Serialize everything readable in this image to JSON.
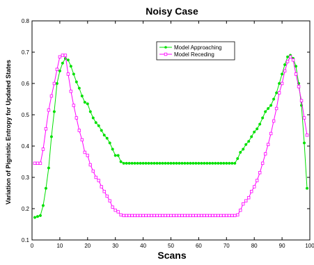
{
  "chart_data": {
    "type": "line",
    "title": "Noisy Case",
    "xlabel": "Scans",
    "ylabel": "Variation of Pignistic Entropy for Updated States",
    "xlim": [
      0,
      100
    ],
    "ylim": [
      0.1,
      0.8
    ],
    "xticks": [
      "0",
      "10",
      "20",
      "30",
      "40",
      "50",
      "60",
      "70",
      "80",
      "90",
      "100"
    ],
    "yticks": [
      "0.1",
      "0.2",
      "0.3",
      "0.4",
      "0.5",
      "0.6",
      "0.7",
      "0.8"
    ],
    "xtick_values": [
      0,
      10,
      20,
      30,
      40,
      50,
      60,
      70,
      80,
      90,
      100
    ],
    "ytick_values": [
      0.1,
      0.2,
      0.3,
      0.4,
      0.5,
      0.6,
      0.7,
      0.8
    ],
    "grid": false,
    "legend_position": "top-right",
    "series": [
      {
        "name": "Model Approaching",
        "color": "#00e000",
        "marker": "filled-dot",
        "x": [
          1,
          2,
          3,
          4,
          5,
          6,
          7,
          8,
          9,
          10,
          11,
          12,
          13,
          14,
          15,
          16,
          17,
          18,
          19,
          20,
          21,
          22,
          23,
          24,
          25,
          26,
          27,
          28,
          29,
          30,
          31,
          32,
          33,
          34,
          35,
          36,
          37,
          38,
          39,
          40,
          41,
          42,
          43,
          44,
          45,
          46,
          47,
          48,
          49,
          50,
          51,
          52,
          53,
          54,
          55,
          56,
          57,
          58,
          59,
          60,
          61,
          62,
          63,
          64,
          65,
          66,
          67,
          68,
          69,
          70,
          71,
          72,
          73,
          74,
          75,
          76,
          77,
          78,
          79,
          80,
          81,
          82,
          83,
          84,
          85,
          86,
          87,
          88,
          89,
          90,
          91,
          92,
          93,
          94,
          95,
          96,
          97,
          98,
          99
        ],
        "y": [
          0.172,
          0.175,
          0.178,
          0.21,
          0.265,
          0.33,
          0.43,
          0.51,
          0.6,
          0.64,
          0.665,
          0.68,
          0.675,
          0.655,
          0.63,
          0.605,
          0.585,
          0.56,
          0.54,
          0.535,
          0.51,
          0.49,
          0.475,
          0.465,
          0.45,
          0.435,
          0.425,
          0.41,
          0.39,
          0.37,
          0.37,
          0.35,
          0.345,
          0.345,
          0.345,
          0.345,
          0.345,
          0.345,
          0.345,
          0.345,
          0.345,
          0.345,
          0.345,
          0.345,
          0.345,
          0.345,
          0.345,
          0.345,
          0.345,
          0.345,
          0.345,
          0.345,
          0.345,
          0.345,
          0.345,
          0.345,
          0.345,
          0.345,
          0.345,
          0.345,
          0.345,
          0.345,
          0.345,
          0.345,
          0.345,
          0.345,
          0.345,
          0.345,
          0.345,
          0.345,
          0.345,
          0.345,
          0.345,
          0.36,
          0.38,
          0.39,
          0.405,
          0.415,
          0.43,
          0.445,
          0.455,
          0.47,
          0.49,
          0.51,
          0.52,
          0.53,
          0.55,
          0.57,
          0.6,
          0.63,
          0.66,
          0.685,
          0.69,
          0.68,
          0.655,
          0.6,
          0.53,
          0.41,
          0.265
        ]
      },
      {
        "name": "Model Receding",
        "color": "#ff00ff",
        "marker": "open-square",
        "x": [
          1,
          2,
          3,
          4,
          5,
          6,
          7,
          8,
          9,
          10,
          11,
          12,
          13,
          14,
          15,
          16,
          17,
          18,
          19,
          20,
          21,
          22,
          23,
          24,
          25,
          26,
          27,
          28,
          29,
          30,
          31,
          32,
          33,
          34,
          35,
          36,
          37,
          38,
          39,
          40,
          41,
          42,
          43,
          44,
          45,
          46,
          47,
          48,
          49,
          50,
          51,
          52,
          53,
          54,
          55,
          56,
          57,
          58,
          59,
          60,
          61,
          62,
          63,
          64,
          65,
          66,
          67,
          68,
          69,
          70,
          71,
          72,
          73,
          74,
          75,
          76,
          77,
          78,
          79,
          80,
          81,
          82,
          83,
          84,
          85,
          86,
          87,
          88,
          89,
          90,
          91,
          92,
          93,
          94,
          95,
          96,
          97,
          98,
          99
        ],
        "y": [
          0.345,
          0.345,
          0.345,
          0.39,
          0.455,
          0.515,
          0.56,
          0.6,
          0.645,
          0.685,
          0.69,
          0.69,
          0.63,
          0.575,
          0.53,
          0.49,
          0.45,
          0.42,
          0.38,
          0.37,
          0.34,
          0.32,
          0.3,
          0.29,
          0.27,
          0.255,
          0.24,
          0.225,
          0.205,
          0.195,
          0.19,
          0.18,
          0.178,
          0.178,
          0.178,
          0.178,
          0.178,
          0.178,
          0.178,
          0.178,
          0.178,
          0.178,
          0.178,
          0.178,
          0.178,
          0.178,
          0.178,
          0.178,
          0.178,
          0.178,
          0.178,
          0.178,
          0.178,
          0.178,
          0.178,
          0.178,
          0.178,
          0.178,
          0.178,
          0.178,
          0.178,
          0.178,
          0.178,
          0.178,
          0.178,
          0.178,
          0.178,
          0.178,
          0.178,
          0.178,
          0.178,
          0.178,
          0.178,
          0.18,
          0.195,
          0.215,
          0.225,
          0.235,
          0.255,
          0.27,
          0.29,
          0.315,
          0.345,
          0.375,
          0.405,
          0.44,
          0.48,
          0.52,
          0.57,
          0.6,
          0.64,
          0.67,
          0.685,
          0.675,
          0.63,
          0.59,
          0.545,
          0.49,
          0.435
        ]
      }
    ]
  }
}
